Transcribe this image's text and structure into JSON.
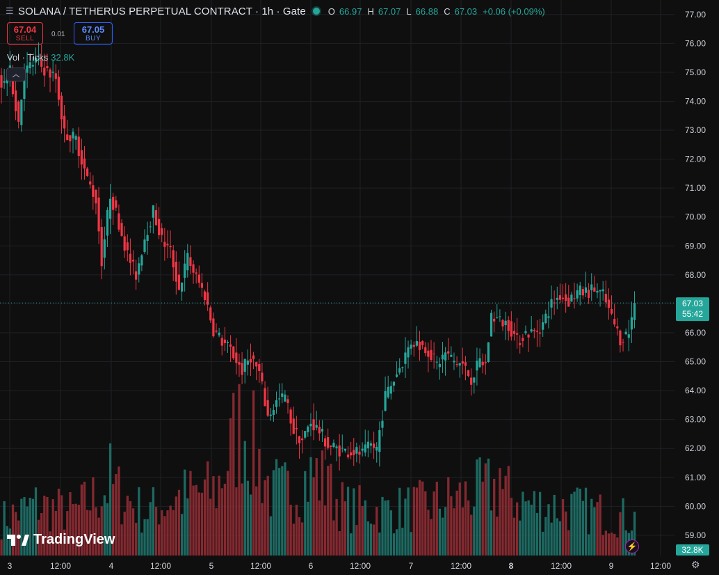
{
  "header": {
    "title": "SOLANA / TETHERUS PERPETUAL CONTRACT · 1h · Gate",
    "ohlc": {
      "o_label": "O",
      "o_value": "66.97",
      "h_label": "H",
      "h_value": "67.07",
      "l_label": "L",
      "l_value": "66.88",
      "c_label": "C",
      "c_value": "67.03",
      "change": "+0.06 (+0.09%)"
    }
  },
  "trade": {
    "sell_price": "67.04",
    "sell_label": "SELL",
    "spread": "0.01",
    "buy_price": "67.05",
    "buy_label": "BUY"
  },
  "volume_legend": {
    "label": "Vol · Ticks",
    "value": "32.8K"
  },
  "last_price": {
    "value": "67.03",
    "countdown": "55:42"
  },
  "volume_badge": "32.8K",
  "branding": "TradingView",
  "colors": {
    "up": "#26a69a",
    "down": "#f23645",
    "background": "#0f0f0f",
    "grid": "#1f2126",
    "axis_text": "#d1d4dc"
  },
  "chart_data": {
    "type": "candlestick",
    "interval": "1h",
    "y_axis": {
      "ticks": [
        "59.00",
        "60.00",
        "61.00",
        "62.00",
        "63.00",
        "64.00",
        "65.00",
        "66.00",
        "67.00",
        "68.00",
        "69.00",
        "70.00",
        "71.00",
        "72.00",
        "73.00",
        "74.00",
        "75.00",
        "76.00",
        "77.00"
      ],
      "range": [
        58.3,
        77.5
      ]
    },
    "x_axis": {
      "ticks": [
        "3",
        "12:00",
        "4",
        "12:00",
        "5",
        "12:00",
        "6",
        "12:00",
        "7",
        "12:00",
        "8",
        "12:00",
        "9",
        "12:00"
      ],
      "bold_ticks": [
        "8"
      ]
    },
    "keypoints": [
      [
        0,
        74.6
      ],
      [
        3,
        75.0
      ],
      [
        6,
        73.3
      ],
      [
        8,
        75.0
      ],
      [
        12,
        75.4
      ],
      [
        15,
        75.1
      ],
      [
        19,
        74.8
      ],
      [
        22,
        72.9
      ],
      [
        26,
        72.7
      ],
      [
        30,
        71.3
      ],
      [
        33,
        70.6
      ],
      [
        35,
        68.5
      ],
      [
        38,
        70.8
      ],
      [
        41,
        69.8
      ],
      [
        44,
        68.7
      ],
      [
        47,
        68.0
      ],
      [
        50,
        69.3
      ],
      [
        53,
        70.2
      ],
      [
        56,
        69.2
      ],
      [
        59,
        68.8
      ],
      [
        62,
        67.5
      ],
      [
        65,
        68.6
      ],
      [
        68,
        67.9
      ],
      [
        71,
        67.3
      ],
      [
        74,
        66.1
      ],
      [
        77,
        65.7
      ],
      [
        80,
        65.4
      ],
      [
        84,
        64.7
      ],
      [
        87,
        65.2
      ],
      [
        90,
        64.6
      ],
      [
        93,
        63.1
      ],
      [
        96,
        63.6
      ],
      [
        99,
        63.8
      ],
      [
        102,
        62.6
      ],
      [
        105,
        62.3
      ],
      [
        108,
        62.9
      ],
      [
        111,
        62.6
      ],
      [
        114,
        62.1
      ],
      [
        117,
        62.0
      ],
      [
        120,
        61.9
      ],
      [
        123,
        61.9
      ],
      [
        126,
        61.8
      ],
      [
        129,
        62.1
      ],
      [
        131,
        62.0
      ],
      [
        134,
        63.8
      ],
      [
        137,
        64.4
      ],
      [
        140,
        65.0
      ],
      [
        143,
        65.7
      ],
      [
        146,
        65.6
      ],
      [
        149,
        65.4
      ],
      [
        152,
        64.9
      ],
      [
        155,
        65.3
      ],
      [
        158,
        65.0
      ],
      [
        161,
        64.9
      ],
      [
        164,
        64.4
      ],
      [
        167,
        65.0
      ],
      [
        169,
        64.9
      ],
      [
        171,
        66.6
      ],
      [
        174,
        66.4
      ],
      [
        177,
        66.3
      ],
      [
        180,
        65.7
      ],
      [
        183,
        66.0
      ],
      [
        186,
        66.0
      ],
      [
        189,
        66.3
      ],
      [
        192,
        67.0
      ],
      [
        195,
        67.3
      ],
      [
        198,
        67.1
      ],
      [
        201,
        67.4
      ],
      [
        204,
        67.4
      ],
      [
        207,
        67.5
      ],
      [
        210,
        67.3
      ],
      [
        213,
        66.5
      ],
      [
        216,
        65.8
      ],
      [
        219,
        66.0
      ],
      [
        221,
        67.03
      ]
    ],
    "volume_keypoints": [
      [
        0,
        32000
      ],
      [
        12,
        45000
      ],
      [
        25,
        38000
      ],
      [
        38,
        62000
      ],
      [
        50,
        38000
      ],
      [
        62,
        52000
      ],
      [
        75,
        58000
      ],
      [
        84,
        120000
      ],
      [
        95,
        52000
      ],
      [
        110,
        72000
      ],
      [
        120,
        42000
      ],
      [
        135,
        40000
      ],
      [
        150,
        45000
      ],
      [
        165,
        55000
      ],
      [
        171,
        60000
      ],
      [
        185,
        45000
      ],
      [
        200,
        42000
      ],
      [
        215,
        35000
      ],
      [
        221,
        32800
      ]
    ],
    "volume_range": [
      0,
      180000
    ],
    "bar_count": 222
  }
}
